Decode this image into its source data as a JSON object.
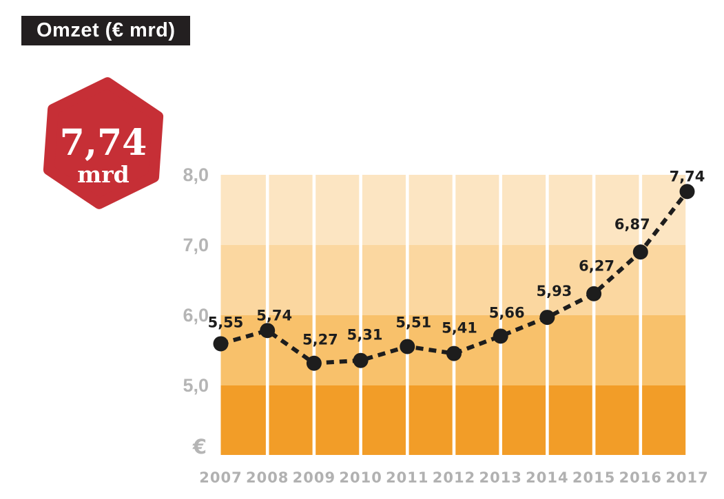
{
  "header": {
    "title": "Omzet (€ mrd)"
  },
  "badge": {
    "value": "7,74",
    "unit": "mrd"
  },
  "chart_data": {
    "type": "line",
    "title": "Omzet (€ mrd)",
    "categories": [
      "2007",
      "2008",
      "2009",
      "2010",
      "2011",
      "2012",
      "2013",
      "2014",
      "2015",
      "2016",
      "2017"
    ],
    "values": [
      5.55,
      5.74,
      5.27,
      5.31,
      5.51,
      5.41,
      5.66,
      5.93,
      6.27,
      6.87,
      7.74
    ],
    "point_labels": [
      "5,55",
      "5,74",
      "5,27",
      "5,31",
      "5,51",
      "5,41",
      "5,66",
      "5,93",
      "6,27",
      "6,87",
      "7,74"
    ],
    "xlabel": "",
    "ylabel": "",
    "y_ticks": [
      {
        "label": "8,0",
        "value": 8
      },
      {
        "label": "7,0",
        "value": 7
      },
      {
        "label": "6,0",
        "value": 6
      },
      {
        "label": "5,0",
        "value": 5
      },
      {
        "label": "€",
        "value": null
      }
    ],
    "ylim": [
      4.05,
      8.0
    ],
    "grid": "white vertical column separators over horizontal orange value bands",
    "legend_position": "none",
    "line_style": "dashed",
    "colors": {
      "bands": [
        "#fce5c2",
        "#fbd7a0",
        "#f8c16b",
        "#f29d28"
      ],
      "separator": "#ffffff",
      "line": "#1d1d1d",
      "point": "#1d1d1d",
      "data_label": "#1d1d1d",
      "y_tick_label": "#b5b5b5",
      "x_tick_label": "#b1b1b1",
      "badge_fill": "#c62f36",
      "badge_text": "#ffffff",
      "title_bg": "#231f20",
      "title_text": "#ffffff"
    }
  }
}
